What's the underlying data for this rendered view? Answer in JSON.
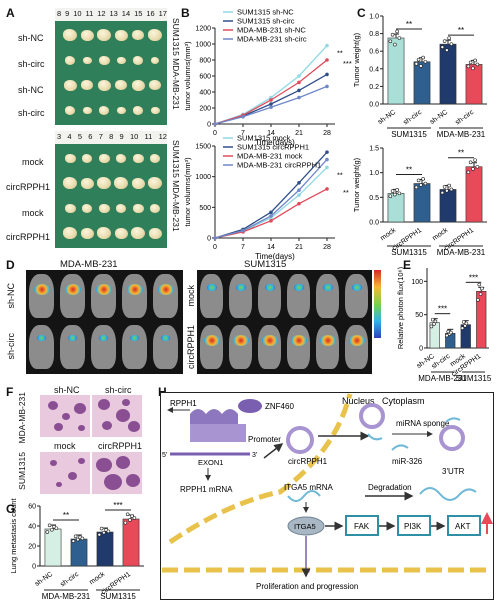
{
  "panels": {
    "A": "A",
    "B": "B",
    "C": "C",
    "D": "D",
    "E": "E",
    "F": "F",
    "G": "G",
    "H": "H"
  },
  "panelA": {
    "ruler_top": [
      "8",
      "9",
      "10",
      "11",
      "12",
      "13",
      "14",
      "15",
      "16",
      "17"
    ],
    "ruler_bottom": [
      "3",
      "4",
      "5",
      "6",
      "7",
      "8",
      "9",
      "10",
      "11",
      "12"
    ],
    "rows_top": [
      "sh-NC",
      "sh-circ",
      "sh-NC",
      "sh-circ"
    ],
    "rows_bottom": [
      "mock",
      "circRPPH1",
      "mock",
      "circRPPH1"
    ],
    "side_top": "SUM1315 MDA-MB-231",
    "side_bottom": "SUM1315 MDA-MB-231"
  },
  "panelD": {
    "left_title": "MDA-MB-231",
    "right_title": "SUM1315",
    "left_rows": [
      "sh-NC",
      "sh-circ"
    ],
    "right_rows": [
      "mock",
      "circRPPH1"
    ]
  },
  "panelF": {
    "top_cols": [
      "sh-NC",
      "sh-circ"
    ],
    "bottom_cols": [
      "mock",
      "circRPPH1"
    ],
    "row_labels": [
      "MDA-MB-231",
      "SUM1315"
    ]
  },
  "panelH": {
    "nucleus": "Nucleus",
    "cytoplasm": "Cytoplasm",
    "rpph1": "RPPH1",
    "znf460": "ZNF460",
    "promoter": "Promoter",
    "five_prime": "5'",
    "exon1": "EXON1",
    "three_prime": "3'",
    "rpph1_mrna": "RPPH1 mRNA",
    "circrpph1": "circRPPH1",
    "mirna_sponge": "miRNA sponge",
    "mir326": "miR-326",
    "itga5_mrna": "ITGA5 mRNA",
    "degradation": "Degradation",
    "utr": "3'UTR",
    "itga5": "ITGA5",
    "fak": "FAK",
    "pi3k": "PI3K",
    "akt": "AKT",
    "proliferation": "Proliferation and progression"
  },
  "chart_data": [
    {
      "id": "B-top",
      "type": "line",
      "xlabel": "Time(days)",
      "ylabel": "tumor volumns(mm³)",
      "x": [
        0,
        7,
        14,
        21,
        28
      ],
      "xlim": [
        0,
        30
      ],
      "ylim": [
        0,
        1200
      ],
      "yticks": [
        0,
        200,
        400,
        600,
        800,
        1000,
        1200
      ],
      "series": [
        {
          "name": "SUM1315 sh-NC",
          "color": "#8fd8e4",
          "values": [
            0,
            120,
            330,
            600,
            980
          ]
        },
        {
          "name": "SUM1315 sh-circ",
          "color": "#2f4f8a",
          "values": [
            0,
            100,
            250,
            420,
            620
          ]
        },
        {
          "name": "MDA-MB-231 sh-NC",
          "color": "#e14a5a",
          "values": [
            0,
            110,
            300,
            520,
            800
          ]
        },
        {
          "name": "MDA-MB-231 sh-circ",
          "color": "#6f87c7",
          "values": [
            0,
            90,
            210,
            330,
            470
          ]
        }
      ],
      "annotations": [
        "**",
        "***"
      ]
    },
    {
      "id": "B-bottom",
      "type": "line",
      "xlabel": "Time(days)",
      "ylabel": "tumor volumns(mm³)",
      "x": [
        0,
        7,
        14,
        21,
        28
      ],
      "xlim": [
        0,
        30
      ],
      "ylim": [
        0,
        1500
      ],
      "yticks": [
        0,
        500,
        1000,
        1500
      ],
      "series": [
        {
          "name": "SUM1315 mock",
          "color": "#8fd8e4",
          "values": [
            0,
            110,
            330,
            700,
            1150
          ]
        },
        {
          "name": "SUM1315 circRPPH1",
          "color": "#2f4f8a",
          "values": [
            0,
            140,
            420,
            900,
            1400
          ]
        },
        {
          "name": "MDA-MB-231 mock",
          "color": "#e14a5a",
          "values": [
            0,
            100,
            280,
            560,
            800
          ]
        },
        {
          "name": "MDA-MB-231 circRPPH1",
          "color": "#6f87c7",
          "values": [
            0,
            120,
            360,
            780,
            1280
          ]
        }
      ],
      "annotations": [
        "**",
        "**"
      ]
    },
    {
      "id": "C-top",
      "type": "bar",
      "ylabel": "Tumor weight(g)",
      "ylim": [
        0,
        1.0
      ],
      "yticks": [
        0.0,
        0.2,
        0.4,
        0.6,
        0.8,
        1.0
      ],
      "categories": [
        "sh-NC",
        "sh-circ",
        "sh-NC",
        "sh-circ"
      ],
      "groups": [
        "SUM1315",
        "MDA-MB-231"
      ],
      "values": [
        0.75,
        0.48,
        0.68,
        0.45
      ],
      "colors": [
        "#a9dfd6",
        "#2f5f8f",
        "#1f3a6b",
        "#e84a5a"
      ],
      "annotations": [
        "**",
        "**"
      ]
    },
    {
      "id": "C-bottom",
      "type": "bar",
      "ylabel": "Tumor weight(g)",
      "ylim": [
        0,
        1.5
      ],
      "yticks": [
        0.0,
        0.5,
        1.0,
        1.5
      ],
      "categories": [
        "mock",
        "circRPPH1",
        "mock",
        "circRPPH1"
      ],
      "groups": [
        "SUM1315",
        "MDA-MB-231"
      ],
      "values": [
        0.58,
        0.78,
        0.66,
        1.12
      ],
      "colors": [
        "#a9dfd6",
        "#2f5f8f",
        "#1f3a6b",
        "#e84a5a"
      ],
      "annotations": [
        "**",
        "**"
      ]
    },
    {
      "id": "E",
      "type": "bar",
      "ylabel": "Relative photon flux(10⁶)",
      "ylim": [
        0,
        120
      ],
      "yticks": [
        0,
        50,
        100
      ],
      "categories": [
        "sh-NC",
        "sh-circ",
        "mock",
        "circRPPH1"
      ],
      "groups": [
        "MDA-MB-231",
        "SUM1315"
      ],
      "values": [
        38,
        22,
        35,
        85
      ],
      "colors": [
        "#d6efe4",
        "#2f5f8f",
        "#1f3a6b",
        "#e84a5a"
      ],
      "annotations": [
        "***",
        "***"
      ]
    },
    {
      "id": "G",
      "type": "bar",
      "ylabel": "Lung metastasis count",
      "ylim": [
        0,
        60
      ],
      "yticks": [
        0,
        20,
        40,
        60
      ],
      "categories": [
        "sh-NC",
        "sh-circ",
        "mock",
        "circRPPH1"
      ],
      "groups": [
        "MDA-MB-231",
        "SUM1315"
      ],
      "values": [
        37,
        27,
        34,
        47
      ],
      "colors": [
        "#d6efe4",
        "#2f5f8f",
        "#1f3a6b",
        "#e84a5a"
      ],
      "annotations": [
        "**",
        "***"
      ]
    }
  ]
}
